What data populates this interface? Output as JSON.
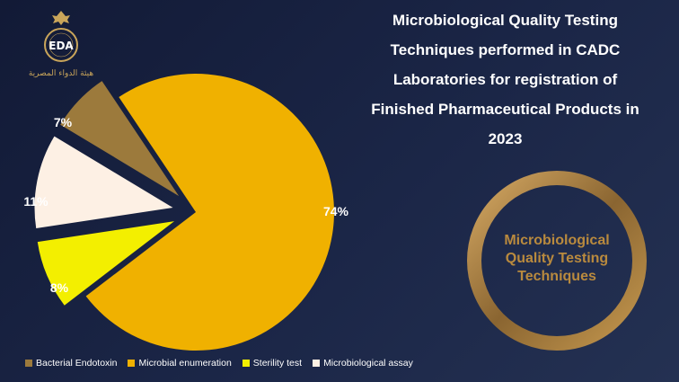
{
  "logo": {
    "text": "EDA",
    "name_line": "EGYPTIAN DRUG AUTHORITY",
    "arabic": "هيئة الدواء المصرية"
  },
  "title_lines": [
    "Microbiological Quality Testing",
    "Techniques performed in CADC",
    "Laboratories for registration of",
    "Finished Pharmaceutical Products in",
    "2023"
  ],
  "ring_label_lines": [
    "Microbiological",
    "Quality Testing",
    "Techniques"
  ],
  "colors": {
    "ring": "#a87e3f",
    "ring_text": "#b98a3e"
  },
  "chart_data": {
    "type": "pie",
    "categories": [
      "Bacterial Endotoxin",
      "Microbial enumeration",
      "Sterility test",
      "Microbiological assay"
    ],
    "values": [
      7,
      74,
      8,
      11
    ],
    "labels": [
      "7%",
      "74%",
      "8%",
      "11%"
    ],
    "colors": [
      "#9c7a3c",
      "#f0b100",
      "#f3ef00",
      "#fdf0e4"
    ],
    "exploded": [
      "Bacterial Endotoxin",
      "Sterility test",
      "Microbiological assay"
    ],
    "legend_position": "bottom"
  }
}
